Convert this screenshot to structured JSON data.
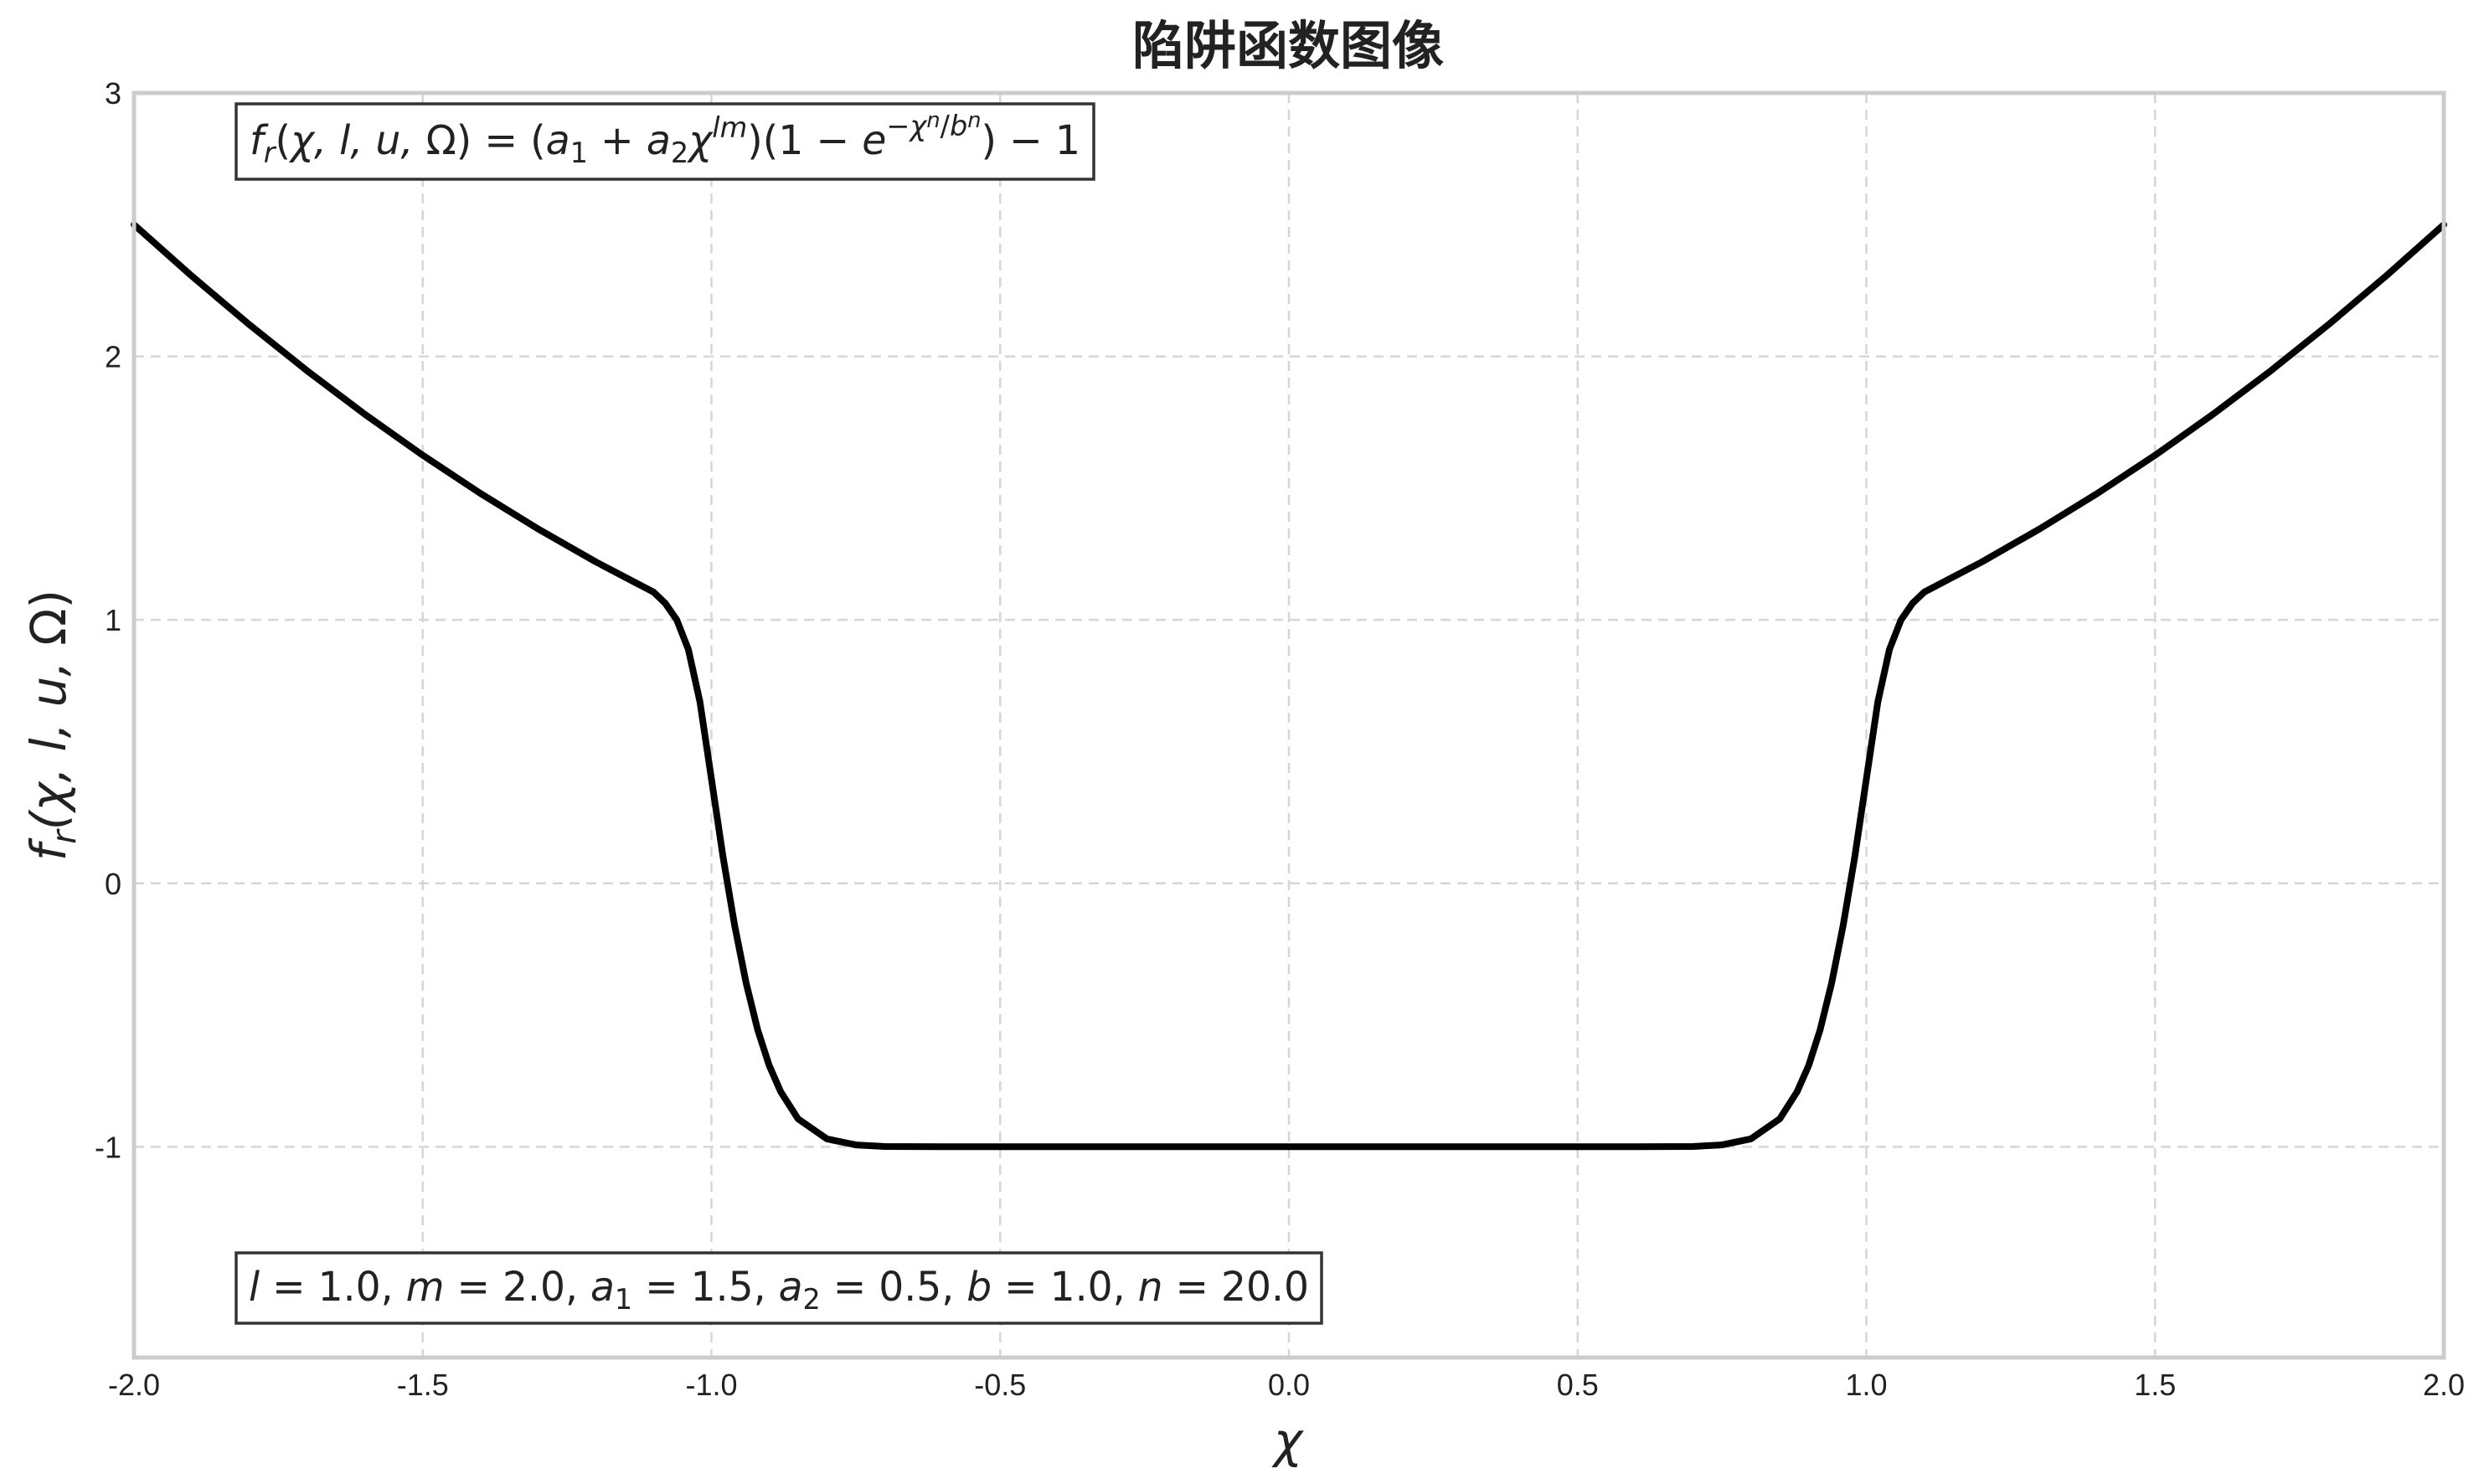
{
  "chart_data": {
    "type": "line",
    "title": "陷阱函数图像",
    "xlabel": "χ",
    "ylabel": "f_r(χ, l, u, Ω)",
    "xlim": [
      -2.0,
      2.0
    ],
    "ylim": [
      -1.8,
      3.0
    ],
    "grid": true,
    "x_ticks": [
      -2.0,
      -1.5,
      -1.0,
      -0.5,
      0.0,
      0.5,
      1.0,
      1.5,
      2.0
    ],
    "x_tick_labels": [
      "-2.0",
      "-1.5",
      "-1.0",
      "-0.5",
      "0.0",
      "0.5",
      "1.0",
      "1.5",
      "2.0"
    ],
    "y_ticks": [
      -1,
      0,
      1,
      2,
      3
    ],
    "y_tick_labels": [
      "-1",
      "0",
      "1",
      "2",
      "3"
    ],
    "formula_annotation": "f_r(χ, l, u, Ω) = (a_1 + a_2 χ^{lm})(1 − e^{−χ^n / b^n}) − 1",
    "params_annotation": "l = 1.0, m = 2.0, a_1 = 1.5, a_2 = 0.5, b = 1.0, n = 20.0",
    "parameters": {
      "l": 1.0,
      "m": 2.0,
      "a1": 1.5,
      "a2": 0.5,
      "b": 1.0,
      "n": 20.0
    },
    "series": [
      {
        "color": "#000000",
        "x": [
          -2.0,
          -1.9,
          -1.8,
          -1.7,
          -1.6,
          -1.5,
          -1.4,
          -1.3,
          -1.2,
          -1.1,
          -1.08,
          -1.06,
          -1.04,
          -1.02,
          -1.0,
          -0.98,
          -0.96,
          -0.94,
          -0.92,
          -0.9,
          -0.88,
          -0.85,
          -0.8,
          -0.75,
          -0.7,
          -0.6,
          -0.4,
          -0.2,
          0.0,
          0.2,
          0.4,
          0.6,
          0.7,
          0.75,
          0.8,
          0.85,
          0.88,
          0.9,
          0.92,
          0.94,
          0.96,
          0.98,
          1.0,
          1.02,
          1.04,
          1.06,
          1.08,
          1.1,
          1.2,
          1.3,
          1.4,
          1.5,
          1.6,
          1.7,
          1.8,
          1.9,
          2.0
        ],
        "y": [
          2.5,
          2.305,
          2.12,
          1.945,
          1.78,
          1.625,
          1.48,
          1.345,
          1.22,
          1.105,
          1.063,
          1.0,
          0.888,
          0.69,
          0.396,
          0.101,
          -0.158,
          -0.378,
          -0.556,
          -0.692,
          -0.791,
          -0.894,
          -0.97,
          -0.993,
          -0.999,
          -1.0,
          -1.0,
          -1.0,
          -1.0,
          -1.0,
          -1.0,
          -1.0,
          -0.999,
          -0.993,
          -0.97,
          -0.894,
          -0.791,
          -0.692,
          -0.556,
          -0.378,
          -0.158,
          0.101,
          0.396,
          0.69,
          0.888,
          1.0,
          1.063,
          1.105,
          1.22,
          1.345,
          1.48,
          1.625,
          1.78,
          1.945,
          2.12,
          2.305,
          2.5
        ]
      }
    ]
  }
}
